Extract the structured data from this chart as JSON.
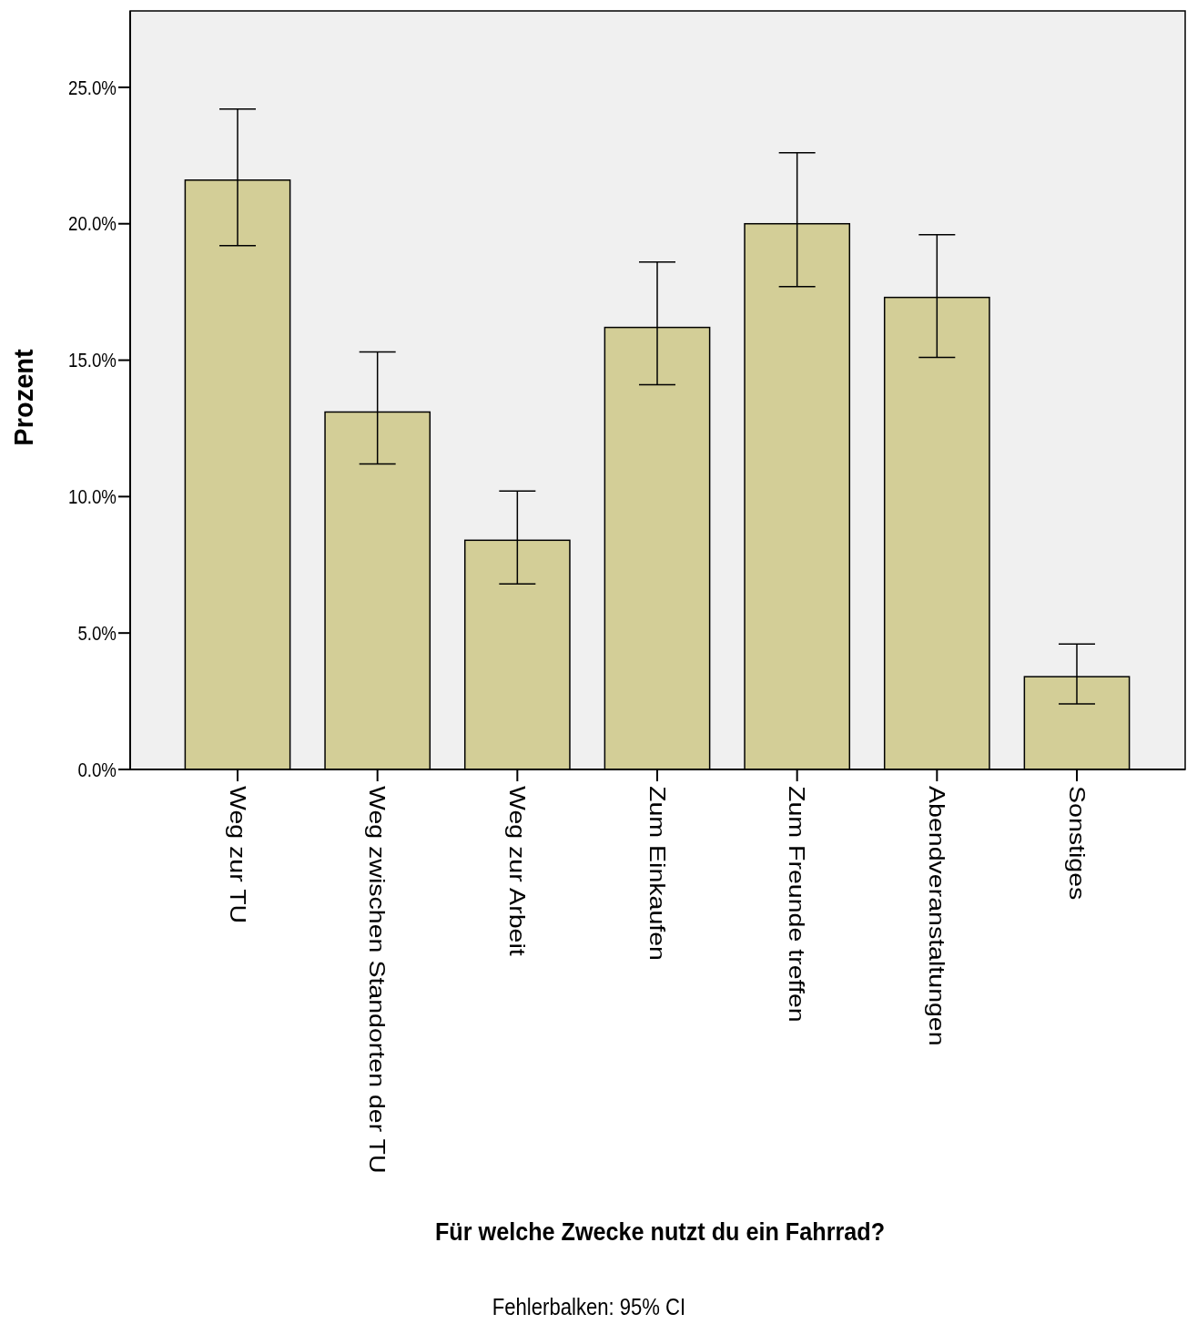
{
  "chart_data": {
    "type": "bar",
    "xlabel": "Für welche Zwecke nutzt du ein Fahrrad?",
    "ylabel": "Prozent",
    "categories": [
      "Weg zur TU",
      "Weg zwischen Standorten der TU",
      "Weg zur Arbeit",
      "Zum Einkaufen",
      "Zum Freunde treffen",
      "Abendveranstaltungen",
      "Sonstiges"
    ],
    "values": [
      21.6,
      13.1,
      8.4,
      16.2,
      20.0,
      17.3,
      3.4
    ],
    "errors": [
      [
        19.2,
        24.2
      ],
      [
        11.2,
        15.3
      ],
      [
        6.8,
        10.2
      ],
      [
        14.1,
        18.6
      ],
      [
        17.7,
        22.6
      ],
      [
        15.1,
        19.6
      ],
      [
        2.4,
        4.6
      ]
    ],
    "color": "#d3ce97",
    "ylim": [
      0,
      27.8
    ],
    "yticks": [
      {
        "value": 0,
        "label": "0.0%"
      },
      {
        "value": 5,
        "label": "5.0%"
      },
      {
        "value": 10,
        "label": "10.0%"
      },
      {
        "value": 15,
        "label": "15.0%"
      },
      {
        "value": 20,
        "label": "20.0%"
      },
      {
        "value": 25,
        "label": "25.0%"
      }
    ],
    "grid": false,
    "annotations": [
      "Fehlerbalken: 95% CI"
    ]
  }
}
